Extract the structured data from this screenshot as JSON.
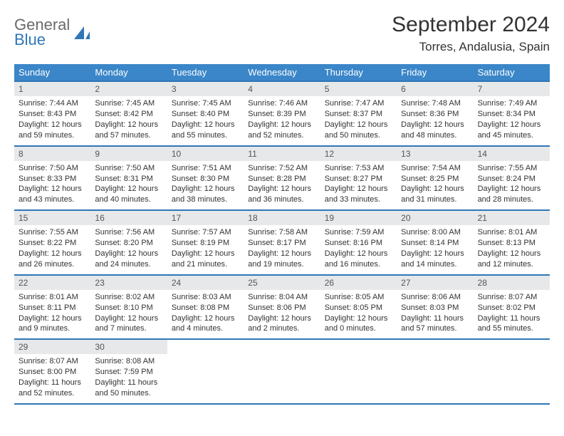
{
  "colors": {
    "header_bg": "#3a86c8",
    "border": "#2f77b7",
    "daynum_bg": "#e7e8e9",
    "text": "#333333",
    "logo_gray": "#6a6a6a",
    "logo_blue": "#2f77b7",
    "page_bg": "#ffffff"
  },
  "typography": {
    "title_fontsize": 30,
    "location_fontsize": 17,
    "header_fontsize": 13,
    "cell_fontsize": 11,
    "daynum_fontsize": 12,
    "logo_fontsize": 22
  },
  "logo": {
    "line1": "General",
    "line2": "Blue"
  },
  "title": "September 2024",
  "location": "Torres, Andalusia, Spain",
  "weekdays": [
    "Sunday",
    "Monday",
    "Tuesday",
    "Wednesday",
    "Thursday",
    "Friday",
    "Saturday"
  ],
  "weeks": [
    [
      {
        "num": "1",
        "sunrise": "Sunrise: 7:44 AM",
        "sunset": "Sunset: 8:43 PM",
        "dl1": "Daylight: 12 hours",
        "dl2": "and 59 minutes."
      },
      {
        "num": "2",
        "sunrise": "Sunrise: 7:45 AM",
        "sunset": "Sunset: 8:42 PM",
        "dl1": "Daylight: 12 hours",
        "dl2": "and 57 minutes."
      },
      {
        "num": "3",
        "sunrise": "Sunrise: 7:45 AM",
        "sunset": "Sunset: 8:40 PM",
        "dl1": "Daylight: 12 hours",
        "dl2": "and 55 minutes."
      },
      {
        "num": "4",
        "sunrise": "Sunrise: 7:46 AM",
        "sunset": "Sunset: 8:39 PM",
        "dl1": "Daylight: 12 hours",
        "dl2": "and 52 minutes."
      },
      {
        "num": "5",
        "sunrise": "Sunrise: 7:47 AM",
        "sunset": "Sunset: 8:37 PM",
        "dl1": "Daylight: 12 hours",
        "dl2": "and 50 minutes."
      },
      {
        "num": "6",
        "sunrise": "Sunrise: 7:48 AM",
        "sunset": "Sunset: 8:36 PM",
        "dl1": "Daylight: 12 hours",
        "dl2": "and 48 minutes."
      },
      {
        "num": "7",
        "sunrise": "Sunrise: 7:49 AM",
        "sunset": "Sunset: 8:34 PM",
        "dl1": "Daylight: 12 hours",
        "dl2": "and 45 minutes."
      }
    ],
    [
      {
        "num": "8",
        "sunrise": "Sunrise: 7:50 AM",
        "sunset": "Sunset: 8:33 PM",
        "dl1": "Daylight: 12 hours",
        "dl2": "and 43 minutes."
      },
      {
        "num": "9",
        "sunrise": "Sunrise: 7:50 AM",
        "sunset": "Sunset: 8:31 PM",
        "dl1": "Daylight: 12 hours",
        "dl2": "and 40 minutes."
      },
      {
        "num": "10",
        "sunrise": "Sunrise: 7:51 AM",
        "sunset": "Sunset: 8:30 PM",
        "dl1": "Daylight: 12 hours",
        "dl2": "and 38 minutes."
      },
      {
        "num": "11",
        "sunrise": "Sunrise: 7:52 AM",
        "sunset": "Sunset: 8:28 PM",
        "dl1": "Daylight: 12 hours",
        "dl2": "and 36 minutes."
      },
      {
        "num": "12",
        "sunrise": "Sunrise: 7:53 AM",
        "sunset": "Sunset: 8:27 PM",
        "dl1": "Daylight: 12 hours",
        "dl2": "and 33 minutes."
      },
      {
        "num": "13",
        "sunrise": "Sunrise: 7:54 AM",
        "sunset": "Sunset: 8:25 PM",
        "dl1": "Daylight: 12 hours",
        "dl2": "and 31 minutes."
      },
      {
        "num": "14",
        "sunrise": "Sunrise: 7:55 AM",
        "sunset": "Sunset: 8:24 PM",
        "dl1": "Daylight: 12 hours",
        "dl2": "and 28 minutes."
      }
    ],
    [
      {
        "num": "15",
        "sunrise": "Sunrise: 7:55 AM",
        "sunset": "Sunset: 8:22 PM",
        "dl1": "Daylight: 12 hours",
        "dl2": "and 26 minutes."
      },
      {
        "num": "16",
        "sunrise": "Sunrise: 7:56 AM",
        "sunset": "Sunset: 8:20 PM",
        "dl1": "Daylight: 12 hours",
        "dl2": "and 24 minutes."
      },
      {
        "num": "17",
        "sunrise": "Sunrise: 7:57 AM",
        "sunset": "Sunset: 8:19 PM",
        "dl1": "Daylight: 12 hours",
        "dl2": "and 21 minutes."
      },
      {
        "num": "18",
        "sunrise": "Sunrise: 7:58 AM",
        "sunset": "Sunset: 8:17 PM",
        "dl1": "Daylight: 12 hours",
        "dl2": "and 19 minutes."
      },
      {
        "num": "19",
        "sunrise": "Sunrise: 7:59 AM",
        "sunset": "Sunset: 8:16 PM",
        "dl1": "Daylight: 12 hours",
        "dl2": "and 16 minutes."
      },
      {
        "num": "20",
        "sunrise": "Sunrise: 8:00 AM",
        "sunset": "Sunset: 8:14 PM",
        "dl1": "Daylight: 12 hours",
        "dl2": "and 14 minutes."
      },
      {
        "num": "21",
        "sunrise": "Sunrise: 8:01 AM",
        "sunset": "Sunset: 8:13 PM",
        "dl1": "Daylight: 12 hours",
        "dl2": "and 12 minutes."
      }
    ],
    [
      {
        "num": "22",
        "sunrise": "Sunrise: 8:01 AM",
        "sunset": "Sunset: 8:11 PM",
        "dl1": "Daylight: 12 hours",
        "dl2": "and 9 minutes."
      },
      {
        "num": "23",
        "sunrise": "Sunrise: 8:02 AM",
        "sunset": "Sunset: 8:10 PM",
        "dl1": "Daylight: 12 hours",
        "dl2": "and 7 minutes."
      },
      {
        "num": "24",
        "sunrise": "Sunrise: 8:03 AM",
        "sunset": "Sunset: 8:08 PM",
        "dl1": "Daylight: 12 hours",
        "dl2": "and 4 minutes."
      },
      {
        "num": "25",
        "sunrise": "Sunrise: 8:04 AM",
        "sunset": "Sunset: 8:06 PM",
        "dl1": "Daylight: 12 hours",
        "dl2": "and 2 minutes."
      },
      {
        "num": "26",
        "sunrise": "Sunrise: 8:05 AM",
        "sunset": "Sunset: 8:05 PM",
        "dl1": "Daylight: 12 hours",
        "dl2": "and 0 minutes."
      },
      {
        "num": "27",
        "sunrise": "Sunrise: 8:06 AM",
        "sunset": "Sunset: 8:03 PM",
        "dl1": "Daylight: 11 hours",
        "dl2": "and 57 minutes."
      },
      {
        "num": "28",
        "sunrise": "Sunrise: 8:07 AM",
        "sunset": "Sunset: 8:02 PM",
        "dl1": "Daylight: 11 hours",
        "dl2": "and 55 minutes."
      }
    ],
    [
      {
        "num": "29",
        "sunrise": "Sunrise: 8:07 AM",
        "sunset": "Sunset: 8:00 PM",
        "dl1": "Daylight: 11 hours",
        "dl2": "and 52 minutes."
      },
      {
        "num": "30",
        "sunrise": "Sunrise: 8:08 AM",
        "sunset": "Sunset: 7:59 PM",
        "dl1": "Daylight: 11 hours",
        "dl2": "and 50 minutes."
      },
      {
        "empty": true
      },
      {
        "empty": true
      },
      {
        "empty": true
      },
      {
        "empty": true
      },
      {
        "empty": true
      }
    ]
  ]
}
